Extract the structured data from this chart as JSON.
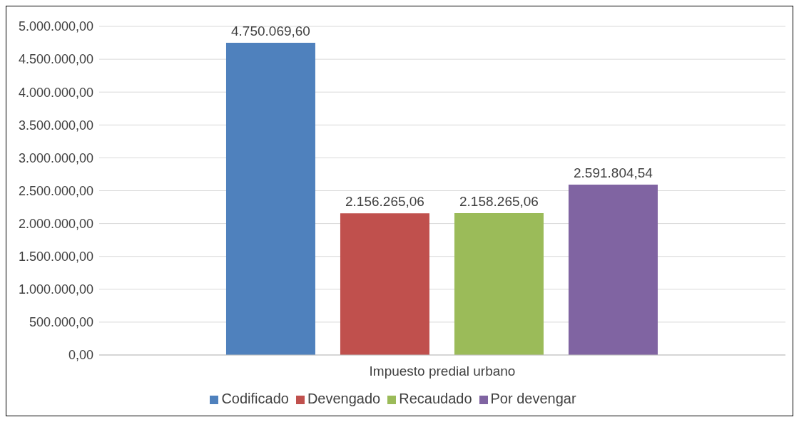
{
  "chart_data": {
    "type": "bar",
    "categories": [
      "Impuesto predial urbano"
    ],
    "series": [
      {
        "name": "Codificado",
        "color": "#4f81bd",
        "values": [
          4750069.6
        ],
        "value_labels": [
          "4.750.069,60"
        ]
      },
      {
        "name": "Devengado",
        "color": "#c0504d",
        "values": [
          2156265.06
        ],
        "value_labels": [
          "2.156.265,06"
        ]
      },
      {
        "name": "Recaudado",
        "color": "#9bbb59",
        "values": [
          2158265.06
        ],
        "value_labels": [
          "2.158.265,06"
        ]
      },
      {
        "name": "Por devengar",
        "color": "#8064a2",
        "values": [
          2591804.54
        ],
        "value_labels": [
          "2.591.804,54"
        ]
      }
    ],
    "ylim": [
      0,
      5000000
    ],
    "yticks": [
      {
        "value": 0,
        "label": "0,00"
      },
      {
        "value": 500000,
        "label": "500.000,00"
      },
      {
        "value": 1000000,
        "label": "1.000.000,00"
      },
      {
        "value": 1500000,
        "label": "1.500.000,00"
      },
      {
        "value": 2000000,
        "label": "2.000.000,00"
      },
      {
        "value": 2500000,
        "label": "2.500.000,00"
      },
      {
        "value": 3000000,
        "label": "3.000.000,00"
      },
      {
        "value": 3500000,
        "label": "3.500.000,00"
      },
      {
        "value": 4000000,
        "label": "4.000.000,00"
      },
      {
        "value": 4500000,
        "label": "4.500.000,00"
      },
      {
        "value": 5000000,
        "label": "5.000.000,00"
      }
    ],
    "grid": "y",
    "legend": "bottom"
  }
}
